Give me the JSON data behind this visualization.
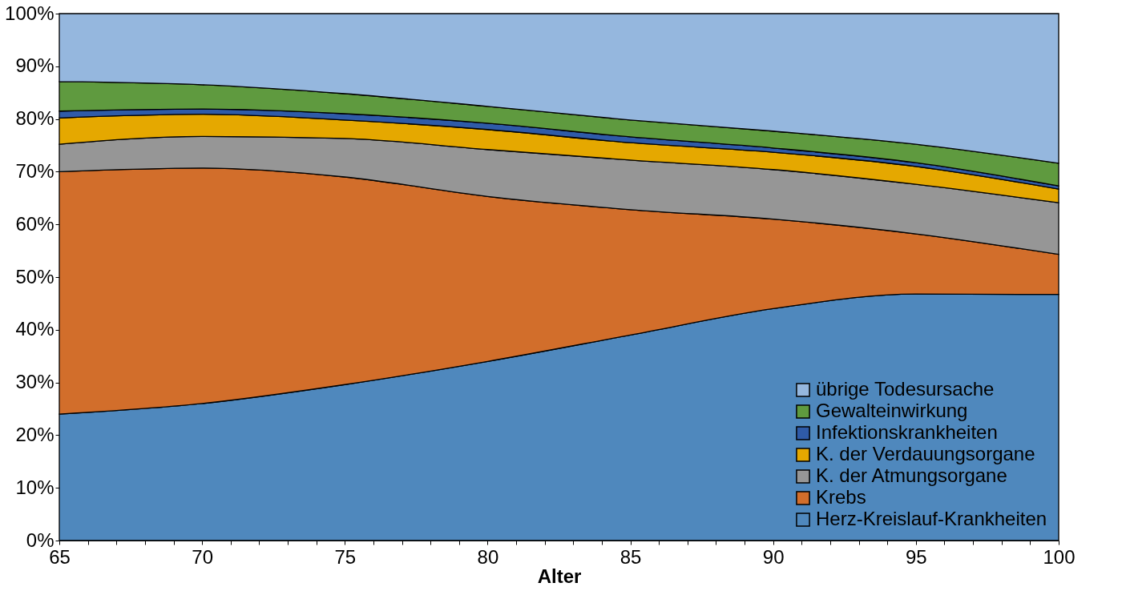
{
  "chart_data": {
    "type": "area",
    "stacked": true,
    "xlabel": "Alter",
    "x": [
      65,
      70,
      75,
      80,
      85,
      90,
      95,
      100
    ],
    "series": [
      {
        "name": "Herz-Kreislauf-Krankheiten",
        "color": "#4f88bd",
        "values": [
          24,
          26,
          29.6,
          34,
          39,
          44,
          46.8,
          46.7
        ]
      },
      {
        "name": "Krebs",
        "color": "#d26e2b",
        "values": [
          46,
          44.7,
          39.4,
          31.3,
          23.8,
          17,
          11.4,
          7.6
        ]
      },
      {
        "name": "K. der Atmungsorgane",
        "color": "#969696",
        "values": [
          5.2,
          6,
          7.3,
          8.9,
          9.4,
          9.4,
          9.4,
          9.8
        ]
      },
      {
        "name": "K. der Verdauungsorgane",
        "color": "#e5a800",
        "values": [
          5,
          4.2,
          3.5,
          3.8,
          3.3,
          3.3,
          3.4,
          2.6
        ]
      },
      {
        "name": "Infektionskrankheiten",
        "color": "#2f5ba8",
        "values": [
          1.3,
          1,
          1.2,
          1.2,
          1.1,
          0.8,
          0.7,
          0.6
        ]
      },
      {
        "name": "Gewalteinwirkung",
        "color": "#5f9a3f",
        "values": [
          5.6,
          4.6,
          3.8,
          3.2,
          3.2,
          3.2,
          3.5,
          4.3
        ]
      },
      {
        "name": "übrige Todesursache",
        "color": "#95b7de",
        "values": [
          12.9,
          13.5,
          15.2,
          17.6,
          20.2,
          22.3,
          24.8,
          28.4
        ]
      }
    ],
    "xlim": [
      65,
      100
    ],
    "xticks": [
      65,
      {
        "value": 66,
        "label": null
      },
      {
        "value": 67,
        "label": null
      },
      {
        "value": 68,
        "label": null
      },
      {
        "value": 69,
        "label": null
      },
      70,
      {
        "value": 71,
        "label": null
      },
      {
        "value": 72,
        "label": null
      },
      {
        "value": 73,
        "label": null
      },
      {
        "value": 74,
        "label": null
      },
      75,
      {
        "value": 76,
        "label": null
      },
      {
        "value": 77,
        "label": null
      },
      {
        "value": 78,
        "label": null
      },
      {
        "value": 79,
        "label": null
      },
      80,
      {
        "value": 81,
        "label": null
      },
      {
        "value": 82,
        "label": null
      },
      {
        "value": 83,
        "label": null
      },
      {
        "value": 84,
        "label": null
      },
      85,
      {
        "value": 86,
        "label": null
      },
      {
        "value": 87,
        "label": null
      },
      {
        "value": 88,
        "label": null
      },
      {
        "value": 89,
        "label": null
      },
      90,
      {
        "value": 91,
        "label": null
      },
      {
        "value": 92,
        "label": null
      },
      {
        "value": 93,
        "label": null
      },
      {
        "value": 94,
        "label": null
      },
      95,
      {
        "value": 96,
        "label": null
      },
      {
        "value": 97,
        "label": null
      },
      {
        "value": 98,
        "label": null
      },
      {
        "value": 99,
        "label": null
      },
      100
    ],
    "ylim": [
      0,
      100
    ],
    "yticks": [
      {
        "value": 0,
        "label": "0%"
      },
      {
        "value": 10,
        "label": "10%"
      },
      {
        "value": 20,
        "label": "20%"
      },
      {
        "value": 30,
        "label": "30%"
      },
      {
        "value": 40,
        "label": "40%"
      },
      {
        "value": 50,
        "label": "50%"
      },
      {
        "value": 60,
        "label": "60%"
      },
      {
        "value": 70,
        "label": "70%"
      },
      {
        "value": 80,
        "label": "80%"
      },
      {
        "value": 90,
        "label": "90%"
      },
      {
        "value": 100,
        "label": "100%"
      }
    ],
    "legend": "bottom right"
  }
}
